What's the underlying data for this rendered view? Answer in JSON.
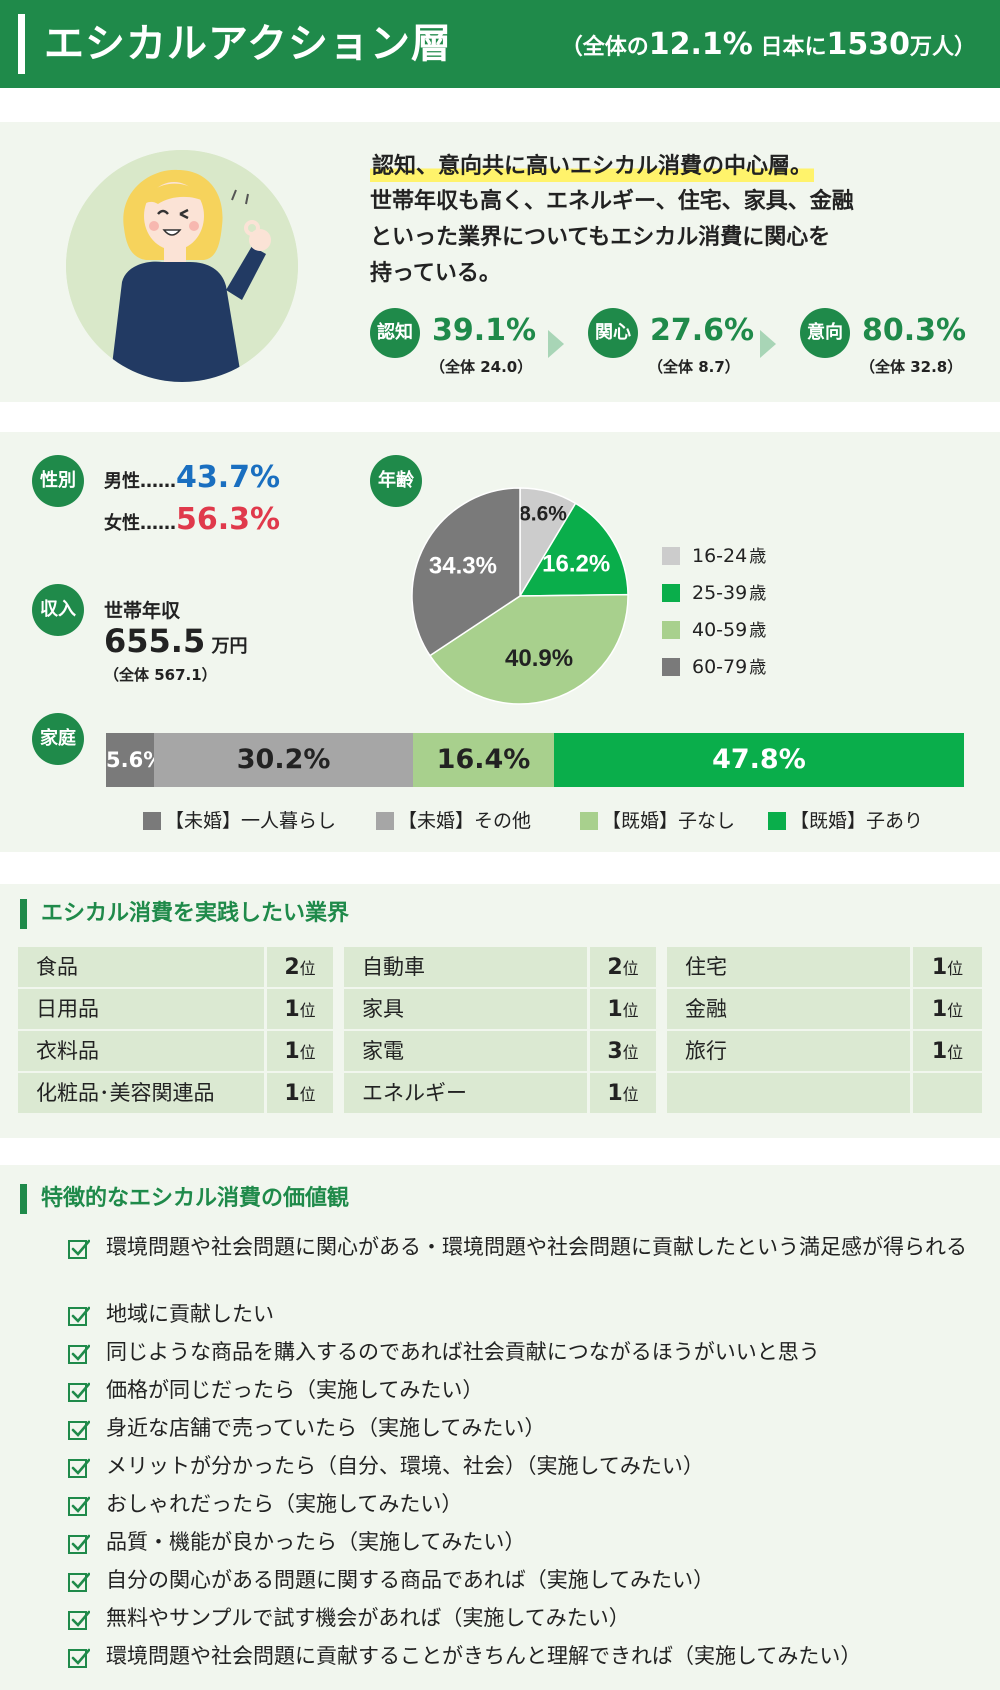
{
  "header": {
    "title": "エシカルアクション層",
    "sub_prefix": "（全体の",
    "sub_pct": "12.1%",
    "sub_mid": "日本に",
    "sub_num": "1530",
    "sub_suffix": "万人）"
  },
  "summary": {
    "highlight": "認知、意向共に高いエシカル消費の中心層。",
    "lines": [
      "世帯年収も高く、エネルギー、住宅、家具、金融",
      "といった業界についてもエシカル消費に関心を",
      "持っている。"
    ],
    "metrics": [
      {
        "label": "認知",
        "value": "39.1%",
        "note": "（全体 24.0）"
      },
      {
        "label": "関心",
        "value": "27.6%",
        "note": "（全体 8.7）"
      },
      {
        "label": "意向",
        "value": "80.3%",
        "note": "（全体 32.8）"
      }
    ]
  },
  "profile": {
    "gender_tag": "性別",
    "male_label": "男性……",
    "male_value": "43.7%",
    "female_label": "女性……",
    "female_value": "56.3%",
    "income_tag": "収入",
    "income_label": "世帯年収",
    "income_value": "655.5",
    "income_unit": "万円",
    "income_note": "（全体 567.1）",
    "age_tag": "年齢",
    "family_tag": "家庭"
  },
  "colors": {
    "brand": "#1f8a4a",
    "light_gray": "#cccccc",
    "bright_green": "#0aae4b",
    "light_green": "#a8d08d",
    "dark_gray": "#7a7a7a",
    "mid_gray": "#a6a6a6",
    "male": "#1a6fc0",
    "female": "#e0394b"
  },
  "chart_data": [
    {
      "type": "pie",
      "categories": [
        "16-24",
        "25-39",
        "40-59",
        "60-79"
      ],
      "values": [
        8.6,
        16.2,
        40.9,
        34.3
      ],
      "labels": [
        "8.6%",
        "16.2%",
        "40.9%",
        "34.3%"
      ],
      "legend": [
        "16-24",
        "25-39",
        "40-59",
        "60-79"
      ],
      "legend_unit": "歳",
      "colors": [
        "#cccccc",
        "#0aae4b",
        "#a8d08d",
        "#7a7a7a"
      ]
    },
    {
      "type": "bar",
      "stacked": true,
      "orientation": "horizontal",
      "categories": [
        "【未婚】一人暮らし",
        "【未婚】その他",
        "【既婚】子なし",
        "【既婚】子あり"
      ],
      "values": [
        5.6,
        30.2,
        16.4,
        47.8
      ],
      "labels": [
        "5.6%",
        "30.2%",
        "16.4%",
        "47.8%"
      ],
      "colors": [
        "#7a7a7a",
        "#a6a6a6",
        "#a8d08d",
        "#0aae4b"
      ]
    }
  ],
  "industries": {
    "title": "エシカル消費を実践したい業界",
    "rank_unit": "位",
    "columns": [
      [
        {
          "name": "食品",
          "rank": "2"
        },
        {
          "name": "日用品",
          "rank": "1"
        },
        {
          "name": "衣料品",
          "rank": "1"
        },
        {
          "name": "化粧品･美容関連品",
          "rank": "1"
        }
      ],
      [
        {
          "name": "自動車",
          "rank": "2"
        },
        {
          "name": "家具",
          "rank": "1"
        },
        {
          "name": "家電",
          "rank": "3"
        },
        {
          "name": "エネルギー",
          "rank": "1"
        }
      ],
      [
        {
          "name": "住宅",
          "rank": "1"
        },
        {
          "name": "金融",
          "rank": "1"
        },
        {
          "name": "旅行",
          "rank": "1"
        },
        {
          "name": "",
          "rank": ""
        }
      ]
    ]
  },
  "values": {
    "title": "特徴的なエシカル消費の価値観",
    "items": [
      "環境問題や社会問題に関心がある・環境問題や社会問題に貢献したという満足感が得られる",
      "地域に貢献したい",
      "同じような商品を購入するのであれば社会貢献につながるほうがいいと思う",
      "価格が同じだったら（実施してみたい）",
      "身近な店舗で売っていたら（実施してみたい）",
      "メリットが分かったら（自分、環境、社会）（実施してみたい）",
      "おしゃれだったら（実施してみたい）",
      "品質・機能が良かったら（実施してみたい）",
      "自分の関心がある問題に関する商品であれば（実施してみたい）",
      "無料やサンプルで試す機会があれば（実施してみたい）",
      "環境問題や社会問題に貢献することがきちんと理解できれば（実施してみたい）"
    ]
  }
}
